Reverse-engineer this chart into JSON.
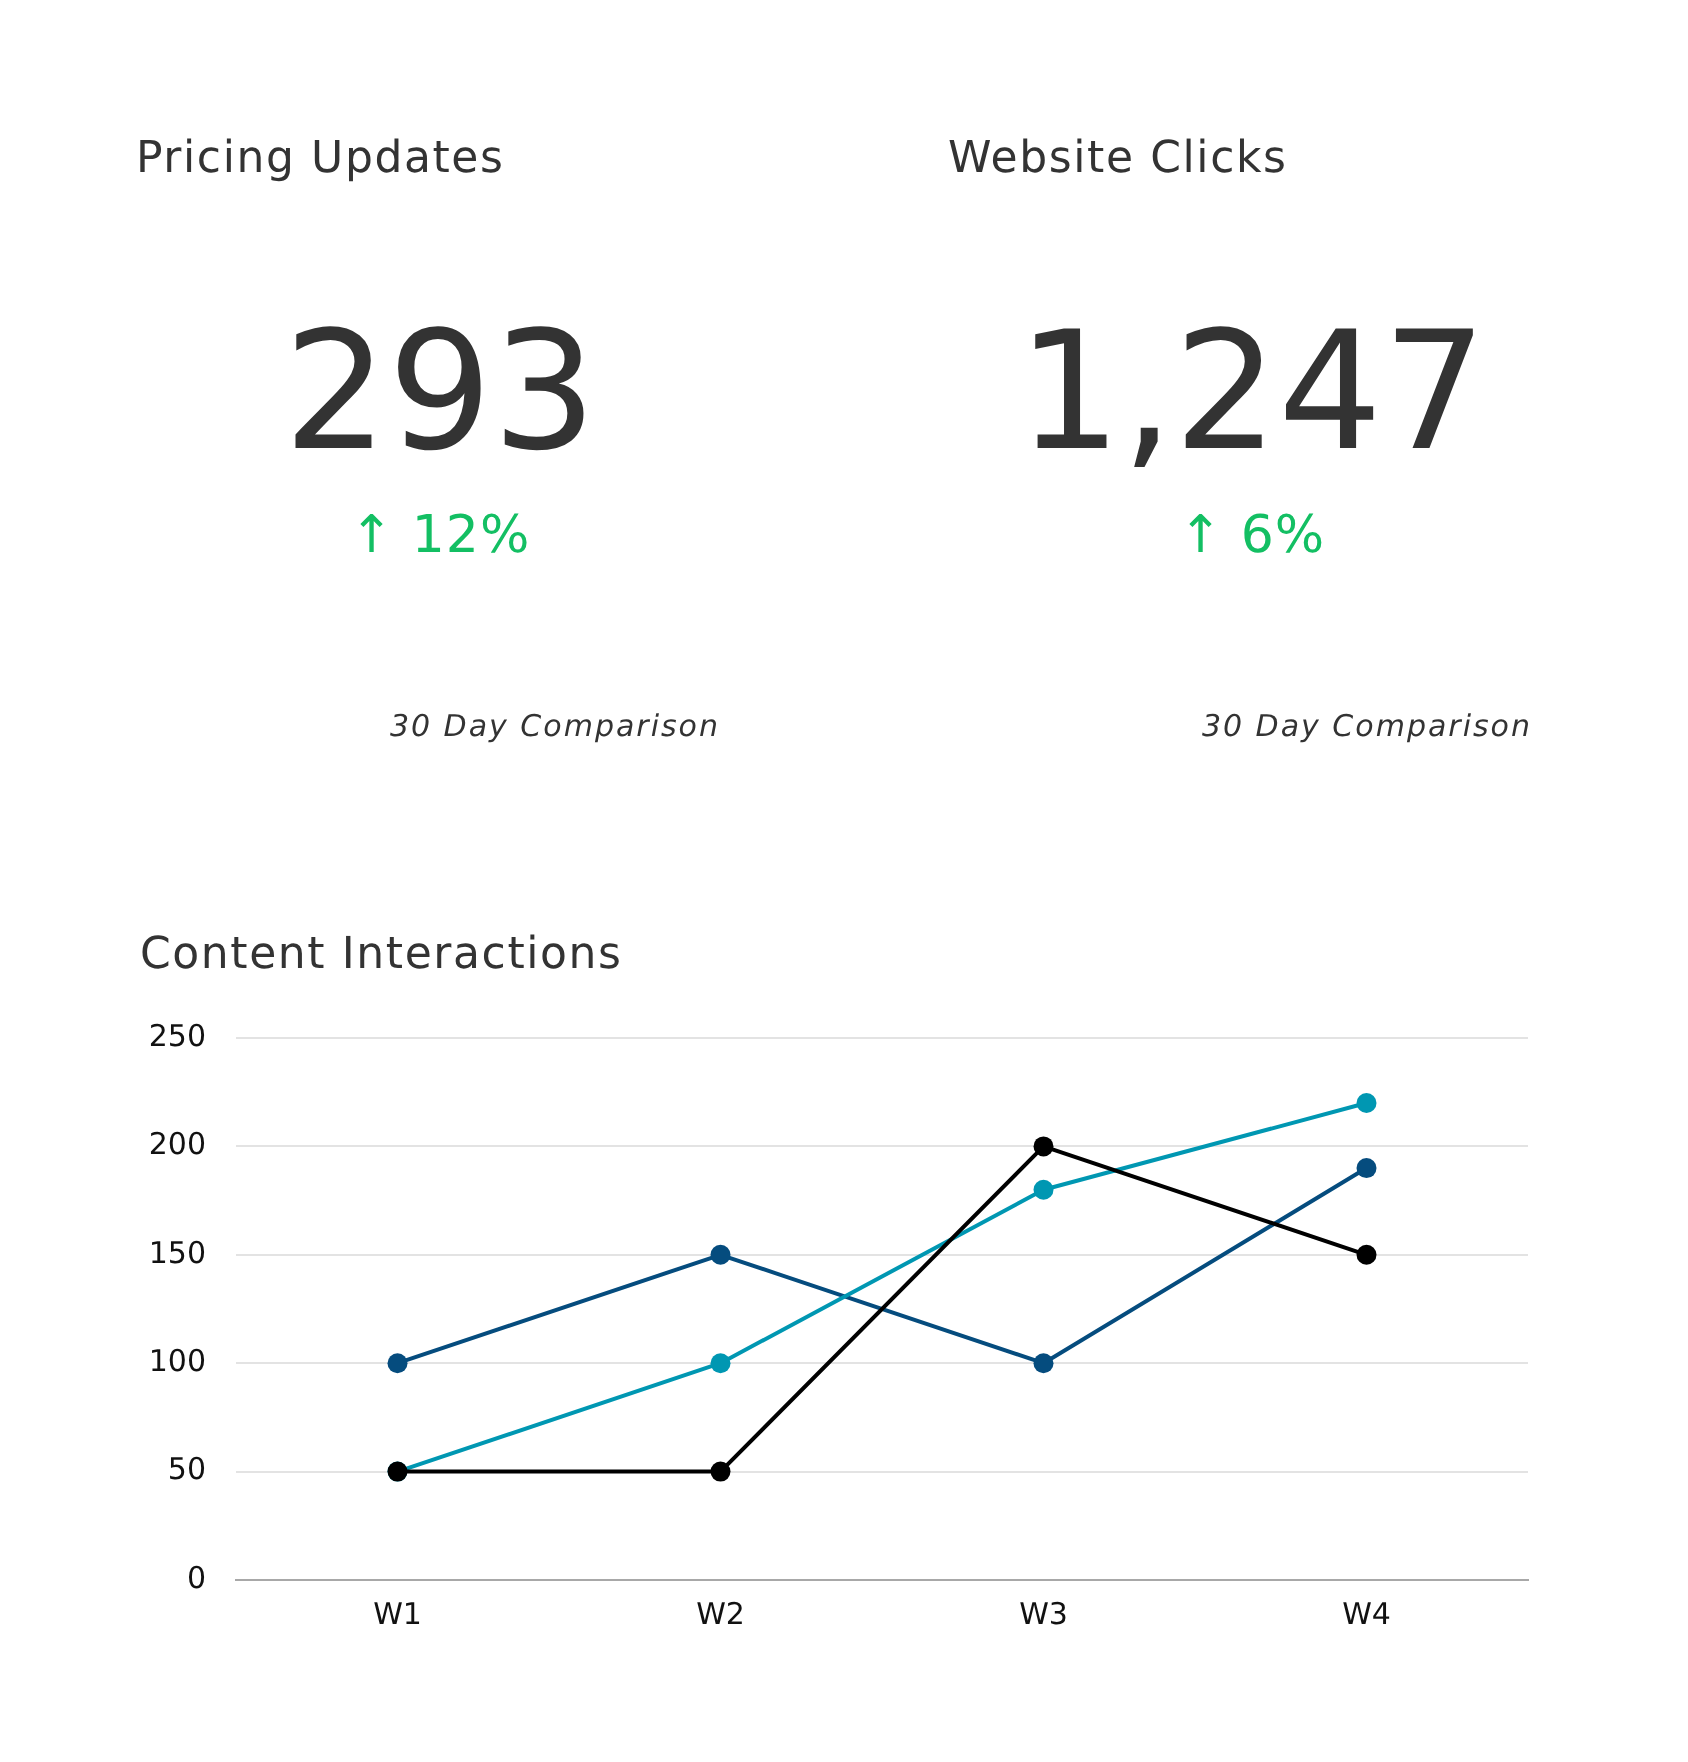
{
  "chart_data": [
    {
      "type": "other",
      "title": "Pricing Updates",
      "annotations": [
        "293",
        "↑ 12%",
        "30 Day Comparison"
      ]
    },
    {
      "type": "other",
      "title": "Website Clicks",
      "annotations": [
        "1,247",
        "↑ 6%",
        "30 Day Comparison"
      ]
    },
    {
      "type": "line",
      "title": "Content Interactions",
      "categories": [
        "W1",
        "W2",
        "W3",
        "W4"
      ],
      "series": [
        {
          "color": "#000000",
          "values": [
            50,
            50,
            200,
            150
          ]
        },
        {
          "color": "#0097b2",
          "values": [
            50,
            100,
            180,
            220
          ]
        },
        {
          "color": "#054c7e",
          "values": [
            100,
            150,
            100,
            190
          ]
        }
      ],
      "ylim": [
        0,
        250
      ],
      "yticks": [
        0,
        50,
        100,
        150,
        200,
        250
      ],
      "grid": "y",
      "marker": "circle",
      "line_style": "solid"
    }
  ]
}
